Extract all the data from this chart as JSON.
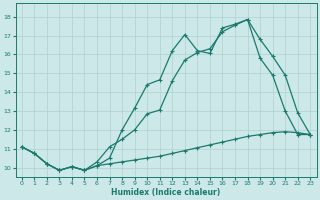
{
  "xlabel": "Humidex (Indice chaleur)",
  "xlim": [
    -0.5,
    23.5
  ],
  "ylim": [
    9.5,
    18.7
  ],
  "yticks": [
    10,
    11,
    12,
    13,
    14,
    15,
    16,
    17,
    18
  ],
  "xticks": [
    0,
    1,
    2,
    3,
    4,
    5,
    6,
    7,
    8,
    9,
    10,
    11,
    12,
    13,
    14,
    15,
    16,
    17,
    18,
    19,
    20,
    21,
    22,
    23
  ],
  "bg_color": "#cce8e8",
  "grid_color": "#b0d0d0",
  "line_color": "#1a7a6e",
  "line1_x": [
    0,
    1,
    2,
    3,
    4,
    5,
    6,
    7,
    8,
    9,
    10,
    11,
    12,
    13,
    14,
    15,
    16,
    17,
    18,
    19,
    20,
    21,
    22,
    23
  ],
  "line1_y": [
    11.1,
    10.75,
    10.2,
    9.85,
    10.05,
    9.85,
    10.1,
    10.5,
    12.0,
    13.15,
    14.4,
    14.65,
    16.2,
    17.05,
    16.2,
    16.05,
    17.4,
    17.6,
    17.85,
    16.8,
    15.9,
    14.9,
    12.9,
    11.75
  ],
  "line2_x": [
    0,
    1,
    2,
    3,
    4,
    5,
    6,
    7,
    8,
    9,
    10,
    11,
    12,
    13,
    14,
    15,
    16,
    17,
    18,
    19,
    20,
    21,
    22,
    23
  ],
  "line2_y": [
    11.1,
    10.75,
    10.2,
    9.85,
    10.05,
    9.85,
    10.3,
    11.1,
    11.5,
    12.0,
    12.85,
    13.05,
    14.6,
    15.7,
    16.1,
    16.3,
    17.2,
    17.55,
    17.85,
    15.8,
    14.9,
    13.0,
    11.75,
    11.75
  ],
  "line3_x": [
    0,
    1,
    2,
    3,
    4,
    5,
    6,
    7,
    8,
    9,
    10,
    11,
    12,
    13,
    14,
    15,
    16,
    17,
    18,
    19,
    20,
    21,
    22,
    23
  ],
  "line3_y": [
    11.1,
    10.75,
    10.2,
    9.85,
    10.05,
    9.85,
    10.1,
    10.2,
    10.3,
    10.4,
    10.5,
    10.6,
    10.75,
    10.9,
    11.05,
    11.2,
    11.35,
    11.5,
    11.65,
    11.75,
    11.85,
    11.9,
    11.85,
    11.75
  ]
}
